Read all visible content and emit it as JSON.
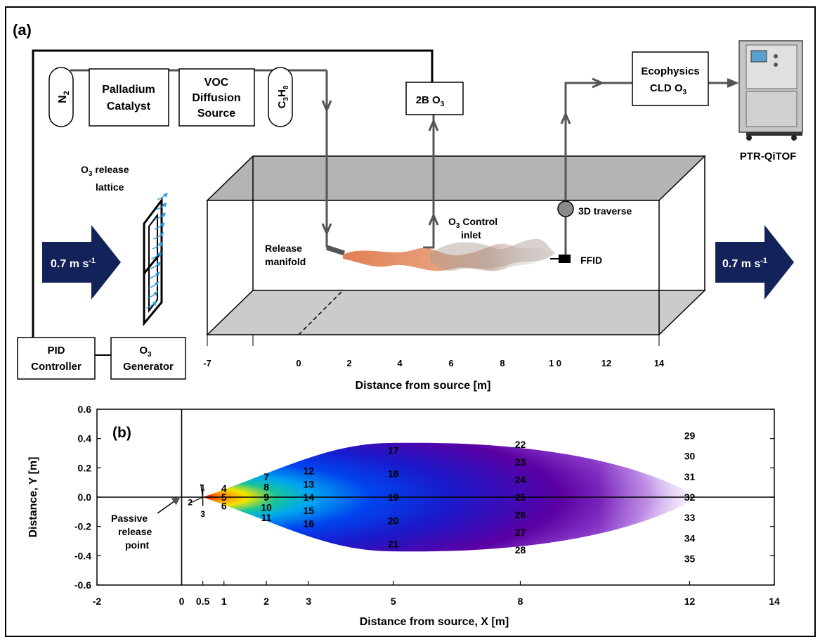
{
  "panel_a": {
    "label": "(a)",
    "components": {
      "n2": {
        "main": "N",
        "sub": "2"
      },
      "palladium": {
        "line1": "Palladium",
        "line2": "Catalyst"
      },
      "voc": {
        "line1": "VOC",
        "line2": "Diffusion",
        "line3": "Source"
      },
      "c3h8": {
        "c": "C",
        "c_sub": "3",
        "h": "H",
        "h_sub": "8"
      },
      "ozone_2b": {
        "main": "2B O",
        "sub": "3"
      },
      "ecophysics": {
        "line1": "Ecophysics",
        "line2": "CLD O",
        "line2_sub": "3"
      },
      "ptr_label": "PTR-QiTOF",
      "pid": {
        "line1": "PID",
        "line2": "Controller"
      },
      "o3_generator": {
        "line1": "O",
        "line1_sub": "3",
        "line2": "Generator"
      }
    },
    "labels": {
      "release_lattice_line1_main": "O",
      "release_lattice_line1_sub": "3",
      "release_lattice_line1_rest": " release",
      "release_lattice_line2": "lattice",
      "release_manifold_line1": "Release",
      "release_manifold_line2": "manifold",
      "control_inlet_line1_main": "O",
      "control_inlet_line1_sub": "3",
      "control_inlet_line1_rest": " Control",
      "control_inlet_line2": "inlet",
      "traverse": "3D traverse",
      "ffid": "FFID"
    },
    "flow": {
      "value": "0.7 m s",
      "exponent": "-1",
      "color": "#13235a"
    },
    "axis": {
      "ticks": [
        "-7",
        "0",
        "2",
        "4",
        "6",
        "8",
        "1 0",
        "12",
        "14"
      ],
      "title": "Distance from source [m]"
    },
    "colors": {
      "tunnel_top": "#b4b4b4",
      "tunnel_floor": "#cbcbcb",
      "pipe": "#555555",
      "plume": "#e2895a",
      "lattice_arrows": "#2a9de0"
    }
  },
  "chart_data": {
    "type": "heatmap",
    "panel_label": "(b)",
    "xlabel": "Distance from source, X [m]",
    "ylabel": "Distance, Y [m]",
    "xlim": [
      -2,
      14
    ],
    "ylim": [
      -0.6,
      0.6
    ],
    "x_ticks": [
      {
        "value": -2,
        "label": "-2"
      },
      {
        "value": 0,
        "label": "0"
      },
      {
        "value": 0.5,
        "label": "0.5"
      },
      {
        "value": 1,
        "label": "1"
      },
      {
        "value": 2,
        "label": "2"
      },
      {
        "value": 3,
        "label": "3"
      },
      {
        "value": 5,
        "label": "5"
      },
      {
        "value": 8,
        "label": "8"
      },
      {
        "value": 12,
        "label": "12"
      },
      {
        "value": 14,
        "label": "14"
      }
    ],
    "y_ticks": [
      {
        "value": 0.6,
        "label": "0.6"
      },
      {
        "value": 0.4,
        "label": "0.4"
      },
      {
        "value": 0.2,
        "label": "0.2"
      },
      {
        "value": 0.0,
        "label": "0.0"
      },
      {
        "value": -0.2,
        "label": "-0.2"
      },
      {
        "value": -0.4,
        "label": "-0.4"
      },
      {
        "value": -0.6,
        "label": "-0.6"
      }
    ],
    "annotation": {
      "line1": "Passive",
      "line2": "release",
      "line3": "point",
      "x": 0,
      "y": 0
    },
    "sample_points": [
      {
        "id": "1",
        "x": 0.5,
        "y": 0.07
      },
      {
        "id": "2",
        "x": 0.4,
        "y": -0.03
      },
      {
        "id": "3",
        "x": 0.5,
        "y": -0.11
      },
      {
        "id": "4",
        "x": 1,
        "y": 0.06
      },
      {
        "id": "5",
        "x": 1,
        "y": 0.0
      },
      {
        "id": "6",
        "x": 1,
        "y": -0.06
      },
      {
        "id": "7",
        "x": 2,
        "y": 0.14
      },
      {
        "id": "8",
        "x": 2,
        "y": 0.07
      },
      {
        "id": "9",
        "x": 2,
        "y": 0.0
      },
      {
        "id": "10",
        "x": 2,
        "y": -0.07
      },
      {
        "id": "11",
        "x": 2,
        "y": -0.14
      },
      {
        "id": "12",
        "x": 3,
        "y": 0.18
      },
      {
        "id": "13",
        "x": 3,
        "y": 0.09
      },
      {
        "id": "14",
        "x": 3,
        "y": 0.0
      },
      {
        "id": "15",
        "x": 3,
        "y": -0.09
      },
      {
        "id": "16",
        "x": 3,
        "y": -0.18
      },
      {
        "id": "17",
        "x": 5,
        "y": 0.32
      },
      {
        "id": "18",
        "x": 5,
        "y": 0.16
      },
      {
        "id": "19",
        "x": 5,
        "y": 0.0
      },
      {
        "id": "20",
        "x": 5,
        "y": -0.16
      },
      {
        "id": "21",
        "x": 5,
        "y": -0.32
      },
      {
        "id": "22",
        "x": 8,
        "y": 0.36
      },
      {
        "id": "23",
        "x": 8,
        "y": 0.24
      },
      {
        "id": "24",
        "x": 8,
        "y": 0.12
      },
      {
        "id": "25",
        "x": 8,
        "y": 0.0
      },
      {
        "id": "26",
        "x": 8,
        "y": -0.12
      },
      {
        "id": "27",
        "x": 8,
        "y": -0.24
      },
      {
        "id": "28",
        "x": 8,
        "y": -0.36
      },
      {
        "id": "29",
        "x": 12,
        "y": 0.42
      },
      {
        "id": "30",
        "x": 12,
        "y": 0.28
      },
      {
        "id": "31",
        "x": 12,
        "y": 0.14
      },
      {
        "id": "32",
        "x": 12,
        "y": 0.0
      },
      {
        "id": "33",
        "x": 12,
        "y": -0.14
      },
      {
        "id": "34",
        "x": 12,
        "y": -0.28
      },
      {
        "id": "35",
        "x": 12,
        "y": -0.42
      }
    ],
    "plume": {
      "origin_x": 0.5,
      "end_x": 12.2,
      "max_halfwidth": 0.37,
      "halfwidth_at_x": 5
    },
    "colormap": [
      "#5b00a3",
      "#1a1acc",
      "#0044ee",
      "#00a6f0",
      "#18c49a",
      "#f2e400",
      "#ff8a00",
      "#e00000"
    ]
  }
}
